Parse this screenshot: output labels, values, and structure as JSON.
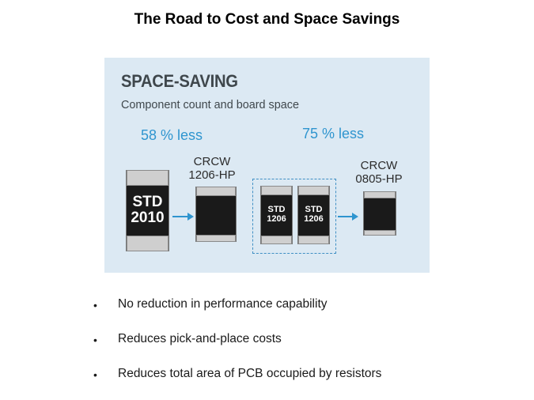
{
  "slide": {
    "title": "The Road to Cost and Space Savings"
  },
  "diagram": {
    "heading": "SPACE-SAVING",
    "subheading": "Component count and board space",
    "reduction_1": "58 % less",
    "reduction_2": "75 % less",
    "parts": [
      {
        "chip_line1": "STD",
        "chip_line2": "2010"
      },
      {
        "label_line1": "CRCW",
        "label_line2": "1206-HP"
      },
      {
        "chip_line1": "STD",
        "chip_line2": "1206"
      },
      {
        "chip_line1": "STD",
        "chip_line2": "1206"
      },
      {
        "label_line1": "CRCW",
        "label_line2": "0805-HP"
      }
    ],
    "colors": {
      "panel_background": "#dce9f3",
      "accent_blue": "#2f95cf",
      "chip_body": "#1a1a1a",
      "chip_terminal": "#cfcfcf"
    }
  },
  "bullets": [
    "No reduction in performance capability",
    "Reduces pick-and-place costs",
    "Reduces total area of PCB occupied by resistors"
  ]
}
